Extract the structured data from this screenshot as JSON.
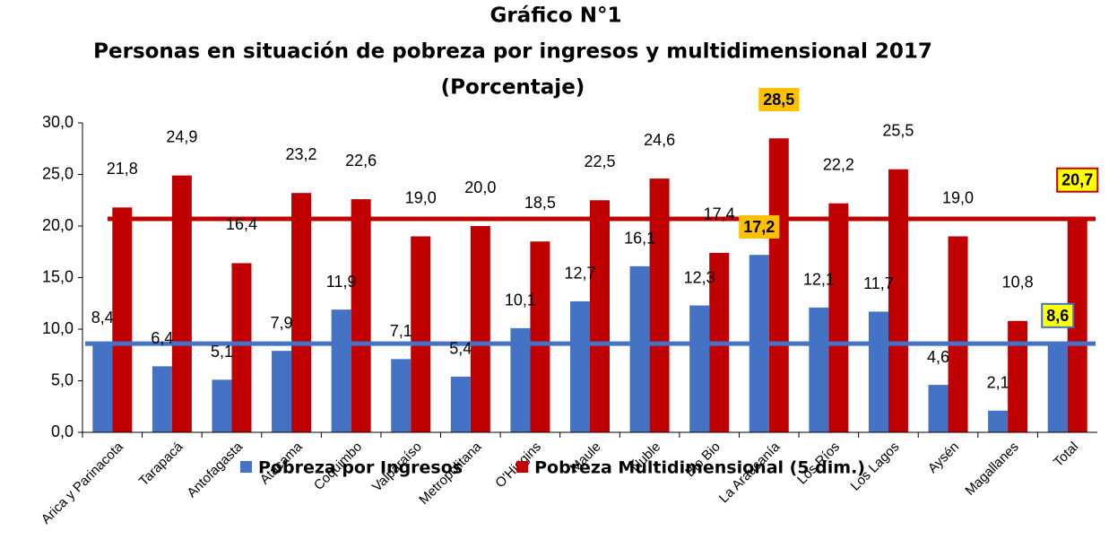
{
  "chart_data": {
    "type": "bar",
    "title": "Gráfico N°1",
    "subtitle": "Personas en situación de pobreza por ingresos y multidimensional 2017",
    "unit_note": "(Porcentaje)",
    "categories": [
      "Arica y Parinacota",
      "Tarapacá",
      "Antofagasta",
      "Atacama",
      "Coquimbo",
      "Valparaíso",
      "Metropolitana",
      "O'Higgins",
      "Maule",
      "Ñuble",
      "Bio Bio",
      "La Araucanía",
      "Los Ríos",
      "Los Lagos",
      "Aysén",
      "Magallanes",
      "Total"
    ],
    "series": [
      {
        "name": "Pobreza por Ingresos",
        "color": "#4472c4",
        "values": [
          8.4,
          6.4,
          5.1,
          7.9,
          11.9,
          7.1,
          5.4,
          10.1,
          12.7,
          16.1,
          12.3,
          17.2,
          12.1,
          11.7,
          4.6,
          2.1,
          8.6
        ],
        "value_labels": [
          "8,4",
          "6,4",
          "5,1",
          "7,9",
          "11,9",
          "7,1",
          "5,4",
          "10,1",
          "12,7",
          "16,1",
          "12,3",
          "17,2",
          "12,1",
          "11,7",
          "4,6",
          "2,1",
          "8,6"
        ],
        "label_boxes": [
          null,
          null,
          null,
          null,
          null,
          null,
          null,
          null,
          null,
          null,
          null,
          "#ffc000",
          null,
          null,
          null,
          null,
          "#ffff00"
        ]
      },
      {
        "name": "Pobreza Multidimensional (5 dim.)",
        "color": "#c00000",
        "values": [
          21.8,
          24.9,
          16.4,
          23.2,
          22.6,
          19.0,
          20.0,
          18.5,
          22.5,
          24.6,
          17.4,
          28.5,
          22.2,
          25.5,
          19.0,
          10.8,
          20.7
        ],
        "value_labels": [
          "21,8",
          "24,9",
          "16,4",
          "23,2",
          "22,6",
          "19,0",
          "20,0",
          "18,5",
          "22,5",
          "24,6",
          "17,4",
          "28,5",
          "22,2",
          "25,5",
          "19,0",
          "10,8",
          "20,7"
        ],
        "label_boxes": [
          null,
          null,
          null,
          null,
          null,
          null,
          null,
          null,
          null,
          null,
          null,
          "#ffc000",
          null,
          null,
          null,
          null,
          "#ffff00"
        ]
      }
    ],
    "ylim": [
      0,
      30
    ],
    "yticks": [
      {
        "value": 0,
        "label": "0,0"
      },
      {
        "value": 5,
        "label": "5,0"
      },
      {
        "value": 10,
        "label": "10,0"
      },
      {
        "value": 15,
        "label": "15,0"
      },
      {
        "value": 20,
        "label": "20,0"
      },
      {
        "value": 25,
        "label": "25,0"
      },
      {
        "value": 30,
        "label": "30,0"
      }
    ],
    "grid": false,
    "legend": "bottom"
  }
}
